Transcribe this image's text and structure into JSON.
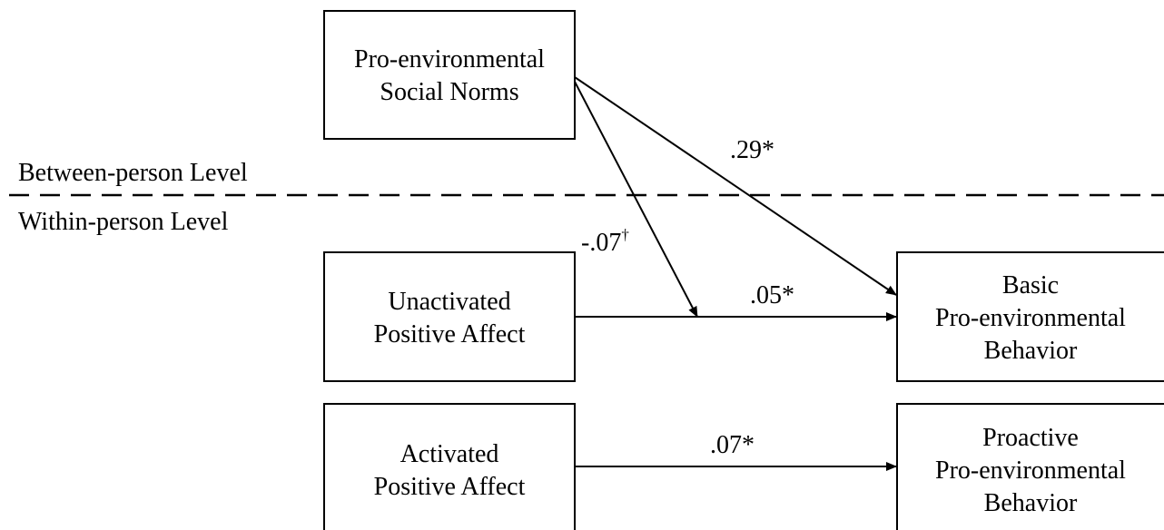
{
  "levels": {
    "between": "Between-person Level",
    "within": "Within-person Level"
  },
  "nodes": [
    {
      "id": "norms",
      "lines": [
        "Pro-environmental",
        "Social Norms"
      ]
    },
    {
      "id": "unactivated",
      "lines": [
        "Unactivated",
        "Positive Affect"
      ]
    },
    {
      "id": "activated",
      "lines": [
        "Activated",
        "Positive Affect"
      ]
    },
    {
      "id": "basic",
      "lines": [
        "Basic",
        "Pro-environmental",
        "Behavior"
      ]
    },
    {
      "id": "proactive",
      "lines": [
        "Proactive",
        "Pro-environmental",
        "Behavior"
      ]
    }
  ],
  "edges": [
    {
      "from": "norms",
      "to": "basic",
      "label": ".29*"
    },
    {
      "from": "norms",
      "to": "unactivated-basic path",
      "label": "-.07",
      "sup": "†"
    },
    {
      "from": "unactivated",
      "to": "basic",
      "label": ".05*"
    },
    {
      "from": "activated",
      "to": "proactive",
      "label": ".07*"
    }
  ]
}
